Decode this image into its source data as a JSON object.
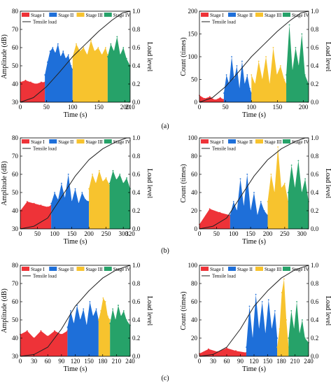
{
  "figure": {
    "panel_labels": [
      "(a)",
      "(b)",
      "(c)"
    ]
  },
  "colors": {
    "Stage I": "#ee3338",
    "Stage II": "#1e6fd9",
    "Stage III": "#f7c32e",
    "Stage IV": "#26a269",
    "load": "#222222"
  },
  "chart_data": [
    {
      "id": "a-amplitude",
      "type": "area",
      "xlabel": "Time (s)",
      "ylabel": "Amplitude (dB)",
      "y2label": "Load level",
      "xlim": [
        0,
        210
      ],
      "ylim": [
        30,
        80
      ],
      "y2lim": [
        0,
        1.0
      ],
      "xticks": [
        0,
        50,
        100,
        150,
        200,
        210
      ],
      "yticks": [
        30,
        40,
        50,
        60,
        70,
        80
      ],
      "y2ticks": [
        0.0,
        0.2,
        0.4,
        0.6,
        0.8,
        1.0
      ],
      "grid": false,
      "legend": "top",
      "series": [
        {
          "name": "Stage I",
          "kind": "area",
          "x": [
            0,
            10,
            20,
            30,
            40,
            47
          ],
          "y": [
            41,
            42,
            41,
            40,
            41,
            41
          ]
        },
        {
          "name": "Stage II",
          "kind": "area",
          "x": [
            47,
            52,
            57,
            62,
            67,
            72,
            77,
            82,
            87,
            92,
            97,
            100
          ],
          "y": [
            45,
            52,
            58,
            60,
            57,
            62,
            55,
            58,
            54,
            56,
            50,
            48
          ]
        },
        {
          "name": "Stage III",
          "kind": "area",
          "x": [
            100,
            107,
            114,
            121,
            128,
            135,
            142,
            149,
            156,
            163,
            167
          ],
          "y": [
            55,
            62,
            58,
            60,
            56,
            64,
            58,
            60,
            56,
            60,
            56
          ]
        },
        {
          "name": "Stage IV",
          "kind": "area",
          "x": [
            167,
            173,
            179,
            185,
            191,
            197,
            203,
            210
          ],
          "y": [
            55,
            62,
            58,
            66,
            56,
            60,
            54,
            50
          ]
        },
        {
          "name": "Tensile load",
          "kind": "line",
          "axis": "y2",
          "x": [
            0,
            25,
            50,
            75,
            100,
            125,
            150,
            175,
            195,
            210
          ],
          "y": [
            0.0,
            0.05,
            0.17,
            0.33,
            0.5,
            0.64,
            0.78,
            0.9,
            0.98,
            1.0
          ]
        }
      ]
    },
    {
      "id": "a-count",
      "type": "area",
      "xlabel": "Time (s)",
      "ylabel": "Count (times)",
      "y2label": "Load level",
      "xlim": [
        0,
        210
      ],
      "ylim": [
        0,
        200
      ],
      "y2lim": [
        0,
        1.0
      ],
      "xticks": [
        0,
        50,
        100,
        150,
        200
      ],
      "yticks": [
        0,
        50,
        100,
        150,
        200
      ],
      "y2ticks": [
        0.0,
        0.2,
        0.4,
        0.6,
        0.8,
        1.0
      ],
      "grid": false,
      "legend": "top",
      "series": [
        {
          "name": "Stage I",
          "kind": "area",
          "x": [
            0,
            10,
            20,
            30,
            40,
            47
          ],
          "y": [
            15,
            8,
            12,
            5,
            10,
            6
          ]
        },
        {
          "name": "Stage II",
          "kind": "area",
          "x": [
            47,
            52,
            57,
            62,
            67,
            72,
            77,
            82,
            87,
            92,
            97,
            100
          ],
          "y": [
            20,
            60,
            40,
            100,
            50,
            80,
            30,
            90,
            40,
            60,
            30,
            20
          ]
        },
        {
          "name": "Stage III",
          "kind": "area",
          "x": [
            100,
            107,
            114,
            121,
            128,
            135,
            142,
            149,
            156,
            163,
            167
          ],
          "y": [
            60,
            40,
            90,
            50,
            100,
            40,
            120,
            60,
            80,
            50,
            40
          ]
        },
        {
          "name": "Stage IV",
          "kind": "area",
          "x": [
            167,
            173,
            179,
            185,
            191,
            197,
            203,
            210
          ],
          "y": [
            60,
            170,
            70,
            120,
            80,
            150,
            60,
            40
          ]
        },
        {
          "name": "Tensile load",
          "kind": "line",
          "axis": "y2",
          "x": [
            0,
            25,
            50,
            75,
            100,
            125,
            150,
            175,
            195,
            210
          ],
          "y": [
            0.0,
            0.05,
            0.17,
            0.33,
            0.5,
            0.64,
            0.78,
            0.9,
            0.98,
            1.0
          ]
        }
      ]
    },
    {
      "id": "b-amplitude",
      "type": "area",
      "xlabel": "Time (s)",
      "ylabel": "Amplitude (dB)",
      "y2label": "Load level",
      "xlim": [
        0,
        320
      ],
      "ylim": [
        30,
        80
      ],
      "y2lim": [
        0,
        1.0
      ],
      "xticks": [
        0,
        50,
        100,
        150,
        200,
        250,
        300,
        320
      ],
      "yticks": [
        30,
        40,
        50,
        60,
        70,
        80
      ],
      "y2ticks": [
        0.0,
        0.2,
        0.4,
        0.6,
        0.8,
        1.0
      ],
      "grid": false,
      "legend": "top",
      "series": [
        {
          "name": "Stage I",
          "kind": "area",
          "x": [
            0,
            20,
            40,
            60,
            80,
            90
          ],
          "y": [
            40,
            45,
            44,
            43,
            42,
            43
          ]
        },
        {
          "name": "Stage II",
          "kind": "area",
          "x": [
            90,
            100,
            110,
            120,
            130,
            140,
            150,
            160,
            170,
            180,
            190,
            200
          ],
          "y": [
            44,
            50,
            46,
            55,
            47,
            60,
            45,
            52,
            44,
            50,
            46,
            45
          ]
        },
        {
          "name": "Stage III",
          "kind": "area",
          "x": [
            200,
            210,
            220,
            230,
            240,
            250,
            260
          ],
          "y": [
            52,
            60,
            55,
            62,
            56,
            58,
            54
          ]
        },
        {
          "name": "Stage IV",
          "kind": "area",
          "x": [
            260,
            270,
            280,
            290,
            300,
            310,
            320
          ],
          "y": [
            55,
            62,
            57,
            60,
            55,
            58,
            52
          ]
        },
        {
          "name": "Tensile load",
          "kind": "line",
          "axis": "y2",
          "x": [
            0,
            40,
            80,
            120,
            160,
            200,
            240,
            280,
            310,
            320
          ],
          "y": [
            0.0,
            0.03,
            0.12,
            0.35,
            0.58,
            0.76,
            0.88,
            0.96,
            1.0,
            1.0
          ]
        }
      ]
    },
    {
      "id": "b-count",
      "type": "area",
      "xlabel": "Time (s)",
      "ylabel": "Count (times)",
      "y2label": "Load level",
      "xlim": [
        0,
        320
      ],
      "ylim": [
        0,
        100
      ],
      "y2lim": [
        0,
        1.0
      ],
      "xticks": [
        0,
        50,
        100,
        150,
        200,
        250,
        300
      ],
      "yticks": [
        0,
        20,
        40,
        60,
        80,
        100
      ],
      "y2ticks": [
        0.0,
        0.2,
        0.4,
        0.6,
        0.8,
        1.0
      ],
      "grid": false,
      "legend": "top",
      "series": [
        {
          "name": "Stage I",
          "kind": "area",
          "x": [
            0,
            30,
            60,
            90
          ],
          "y": [
            5,
            22,
            18,
            15
          ]
        },
        {
          "name": "Stage II",
          "kind": "area",
          "x": [
            90,
            100,
            110,
            120,
            130,
            140,
            150,
            160,
            170,
            180,
            190,
            200
          ],
          "y": [
            15,
            30,
            20,
            55,
            25,
            60,
            20,
            40,
            15,
            30,
            20,
            15
          ]
        },
        {
          "name": "Stage III",
          "kind": "area",
          "x": [
            200,
            210,
            220,
            230,
            240,
            250,
            260
          ],
          "y": [
            30,
            60,
            40,
            90,
            45,
            50,
            30
          ]
        },
        {
          "name": "Stage IV",
          "kind": "area",
          "x": [
            260,
            270,
            280,
            290,
            300,
            310,
            320
          ],
          "y": [
            40,
            70,
            45,
            75,
            40,
            55,
            30
          ]
        },
        {
          "name": "Tensile load",
          "kind": "line",
          "axis": "y2",
          "x": [
            0,
            40,
            80,
            120,
            160,
            200,
            240,
            280,
            310,
            320
          ],
          "y": [
            0.0,
            0.03,
            0.12,
            0.35,
            0.58,
            0.76,
            0.88,
            0.96,
            1.0,
            1.0
          ]
        }
      ]
    },
    {
      "id": "c-amplitude",
      "type": "area",
      "xlabel": "Time (s)",
      "ylabel": "Amplitude (dB)",
      "y2label": "Load level",
      "xlim": [
        0,
        240
      ],
      "ylim": [
        30,
        80
      ],
      "y2lim": [
        0,
        1.0
      ],
      "xticks": [
        0,
        30,
        60,
        90,
        120,
        150,
        180,
        210,
        240
      ],
      "yticks": [
        30,
        40,
        50,
        60,
        70,
        80
      ],
      "y2ticks": [
        0.0,
        0.2,
        0.4,
        0.6,
        0.8,
        1.0
      ],
      "grid": false,
      "legend": "top",
      "series": [
        {
          "name": "Stage I",
          "kind": "area",
          "x": [
            0,
            15,
            30,
            45,
            60,
            75,
            90,
            103
          ],
          "y": [
            42,
            44,
            40,
            44,
            41,
            44,
            42,
            44
          ]
        },
        {
          "name": "Stage II",
          "kind": "area",
          "x": [
            103,
            110,
            117,
            124,
            131,
            138,
            145,
            152,
            159,
            166,
            171
          ],
          "y": [
            46,
            55,
            48,
            58,
            50,
            56,
            47,
            60,
            52,
            56,
            50
          ]
        },
        {
          "name": "Stage III",
          "kind": "area",
          "x": [
            171,
            176,
            181,
            186,
            191,
            196
          ],
          "y": [
            50,
            55,
            62,
            60,
            52,
            50
          ]
        },
        {
          "name": "Stage IV",
          "kind": "area",
          "x": [
            196,
            202,
            208,
            214,
            220,
            226,
            232,
            240
          ],
          "y": [
            48,
            56,
            50,
            58,
            52,
            55,
            50,
            47
          ]
        },
        {
          "name": "Tensile load",
          "kind": "line",
          "axis": "y2",
          "x": [
            0,
            30,
            60,
            90,
            120,
            150,
            180,
            210,
            240
          ],
          "y": [
            0.0,
            0.02,
            0.1,
            0.3,
            0.55,
            0.72,
            0.86,
            0.95,
            1.0
          ]
        }
      ]
    },
    {
      "id": "c-count",
      "type": "area",
      "xlabel": "Time (s)",
      "ylabel": "Count (times)",
      "y2label": "Load level",
      "xlim": [
        0,
        240
      ],
      "ylim": [
        0,
        100
      ],
      "y2lim": [
        0,
        1.0
      ],
      "xticks": [
        0,
        30,
        60,
        90,
        120,
        150,
        180,
        210,
        240
      ],
      "yticks": [
        0,
        20,
        40,
        60,
        80,
        100
      ],
      "y2ticks": [
        0.0,
        0.2,
        0.4,
        0.6,
        0.8,
        1.0
      ],
      "grid": false,
      "legend": "top",
      "series": [
        {
          "name": "Stage I",
          "kind": "area",
          "x": [
            0,
            20,
            40,
            60,
            80,
            103
          ],
          "y": [
            3,
            8,
            5,
            9,
            6,
            4
          ]
        },
        {
          "name": "Stage II",
          "kind": "area",
          "x": [
            103,
            110,
            117,
            124,
            131,
            138,
            145,
            152,
            159,
            166,
            171
          ],
          "y": [
            10,
            55,
            20,
            68,
            30,
            60,
            25,
            62,
            30,
            50,
            20
          ]
        },
        {
          "name": "Stage III",
          "kind": "area",
          "x": [
            171,
            176,
            181,
            186,
            191,
            196
          ],
          "y": [
            10,
            30,
            70,
            85,
            40,
            10
          ]
        },
        {
          "name": "Stage IV",
          "kind": "area",
          "x": [
            196,
            202,
            208,
            214,
            220,
            226,
            232,
            240
          ],
          "y": [
            20,
            50,
            30,
            60,
            25,
            40,
            20,
            15
          ]
        },
        {
          "name": "Tensile load",
          "kind": "line",
          "axis": "y2",
          "x": [
            0,
            30,
            60,
            90,
            120,
            150,
            180,
            210,
            240
          ],
          "y": [
            0.0,
            0.02,
            0.1,
            0.3,
            0.55,
            0.72,
            0.86,
            0.95,
            1.0
          ]
        }
      ]
    }
  ]
}
